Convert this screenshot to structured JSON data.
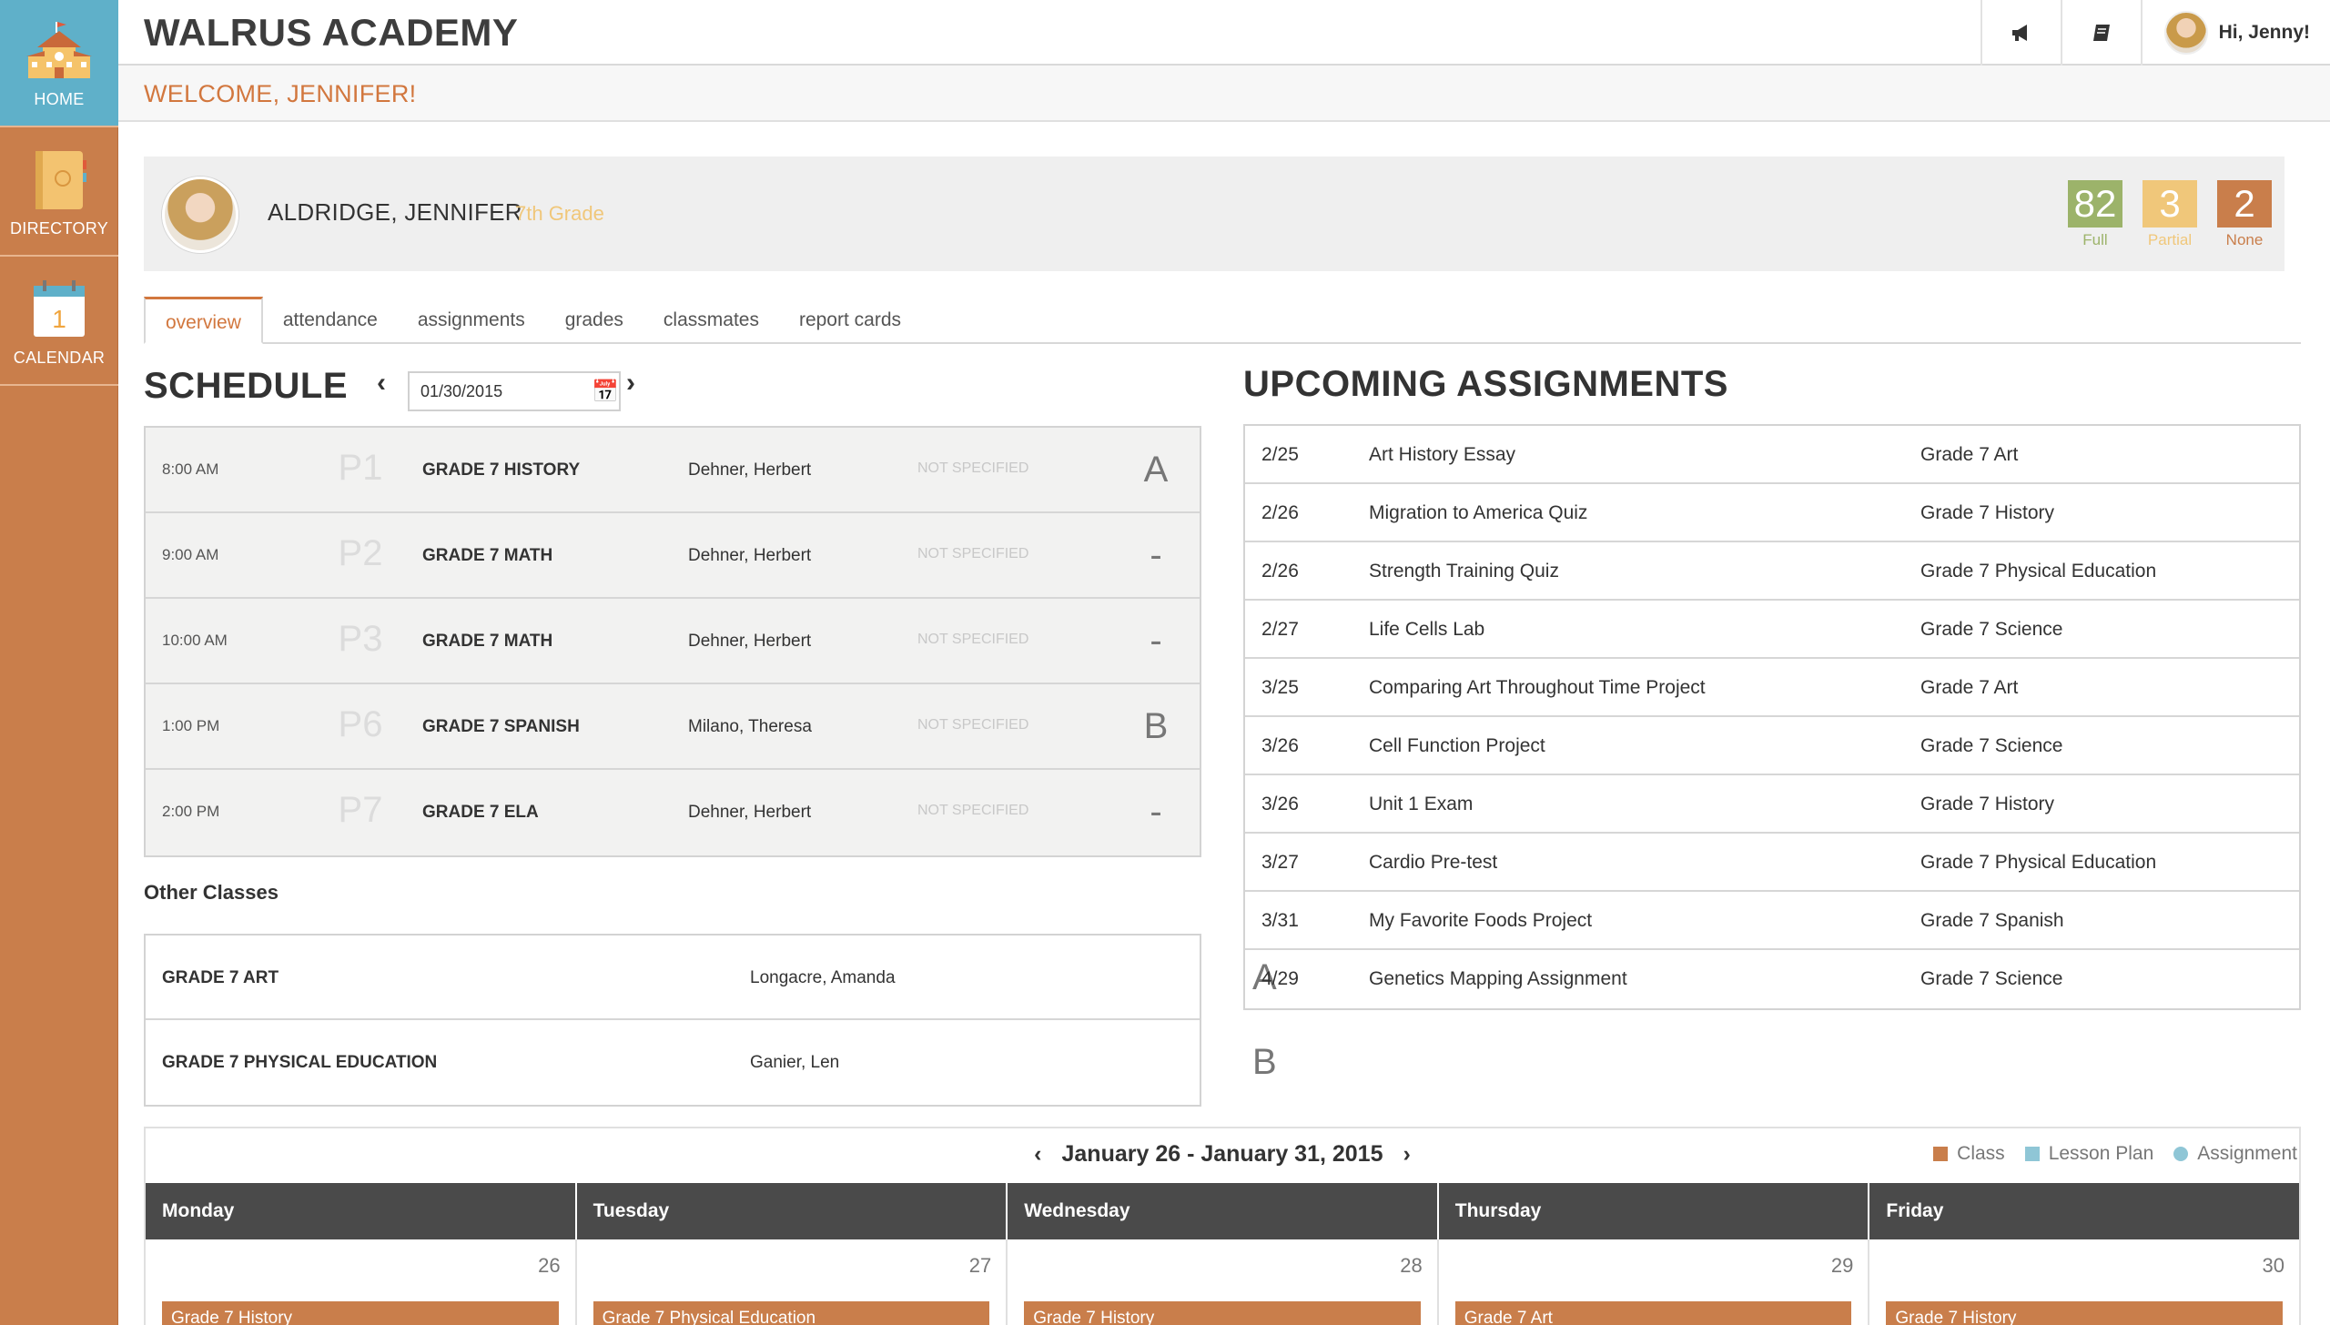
{
  "sidebar": {
    "items": [
      {
        "label": "HOME"
      },
      {
        "label": "DIRECTORY"
      },
      {
        "label": "CALENDAR",
        "icon_text": "1"
      }
    ]
  },
  "header": {
    "brand": "WALRUS ACADEMY",
    "greeting": "Hi, Jenny!",
    "welcome": "WELCOME, JENNIFER!",
    "icons": [
      "megaphone-icon",
      "book-icon"
    ]
  },
  "profile": {
    "name": "ALDRIDGE, JENNIFER",
    "grade": "7th Grade",
    "stats": [
      {
        "value": "82",
        "caption": "Full",
        "color": "#9cb36a"
      },
      {
        "value": "3",
        "caption": "Partial",
        "color": "#f0c77a"
      },
      {
        "value": "2",
        "caption": "None",
        "color": "#c97e4b"
      }
    ]
  },
  "tabs": [
    "overview",
    "attendance",
    "assignments",
    "grades",
    "classmates",
    "report cards"
  ],
  "schedule": {
    "title": "SCHEDULE",
    "date": "01/30/2015",
    "rows": [
      {
        "time": "8:00 AM",
        "period": "P1",
        "class": "GRADE 7 HISTORY",
        "teacher": "Dehner, Herbert",
        "room": "NOT SPECIFIED",
        "grade": "A"
      },
      {
        "time": "9:00 AM",
        "period": "P2",
        "class": "GRADE 7 MATH",
        "teacher": "Dehner, Herbert",
        "room": "NOT SPECIFIED",
        "grade": "-"
      },
      {
        "time": "10:00 AM",
        "period": "P3",
        "class": "GRADE 7 MATH",
        "teacher": "Dehner, Herbert",
        "room": "NOT SPECIFIED",
        "grade": "-"
      },
      {
        "time": "1:00 PM",
        "period": "P6",
        "class": "GRADE 7 SPANISH",
        "teacher": "Milano, Theresa",
        "room": "NOT SPECIFIED",
        "grade": "B"
      },
      {
        "time": "2:00 PM",
        "period": "P7",
        "class": "GRADE 7 ELA",
        "teacher": "Dehner, Herbert",
        "room": "NOT SPECIFIED",
        "grade": "-"
      }
    ]
  },
  "other_classes": {
    "title": "Other Classes",
    "rows": [
      {
        "class": "GRADE 7 ART",
        "teacher": "Longacre, Amanda",
        "grade": "A"
      },
      {
        "class": "GRADE 7 PHYSICAL EDUCATION",
        "teacher": "Ganier, Len",
        "grade": "B"
      }
    ]
  },
  "upcoming": {
    "title": "UPCOMING ASSIGNMENTS",
    "rows": [
      {
        "date": "2/25",
        "title": "Art History Essay",
        "class": "Grade 7 Art"
      },
      {
        "date": "2/26",
        "title": "Migration to America Quiz",
        "class": "Grade 7 History"
      },
      {
        "date": "2/26",
        "title": "Strength Training Quiz",
        "class": "Grade 7 Physical Education"
      },
      {
        "date": "2/27",
        "title": "Life Cells Lab",
        "class": "Grade 7 Science"
      },
      {
        "date": "3/25",
        "title": "Comparing Art Throughout Time Project",
        "class": "Grade 7 Art"
      },
      {
        "date": "3/26",
        "title": "Cell Function Project",
        "class": "Grade 7 Science"
      },
      {
        "date": "3/26",
        "title": "Unit 1 Exam",
        "class": "Grade 7 History"
      },
      {
        "date": "3/27",
        "title": "Cardio Pre-test",
        "class": "Grade 7 Physical Education"
      },
      {
        "date": "3/31",
        "title": "My Favorite Foods Project",
        "class": "Grade 7 Spanish"
      },
      {
        "date": "4/29",
        "title": "Genetics Mapping Assignment",
        "class": "Grade 7 Science"
      }
    ]
  },
  "calendar": {
    "range": "January 26 - January 31, 2015",
    "legend": [
      {
        "label": "Class",
        "color": "#c97e4b"
      },
      {
        "label": "Lesson Plan",
        "color": "#8fc6d6"
      },
      {
        "label": "Assignment",
        "color": "#8fc6d6"
      }
    ],
    "days": [
      {
        "name": "Monday",
        "num": "26",
        "event": "Grade 7 History"
      },
      {
        "name": "Tuesday",
        "num": "27",
        "event": "Grade 7 Physical Education"
      },
      {
        "name": "Wednesday",
        "num": "28",
        "event": "Grade 7 History"
      },
      {
        "name": "Thursday",
        "num": "29",
        "event": "Grade 7 Art"
      },
      {
        "name": "Friday",
        "num": "30",
        "event": "Grade 7 History"
      }
    ]
  }
}
